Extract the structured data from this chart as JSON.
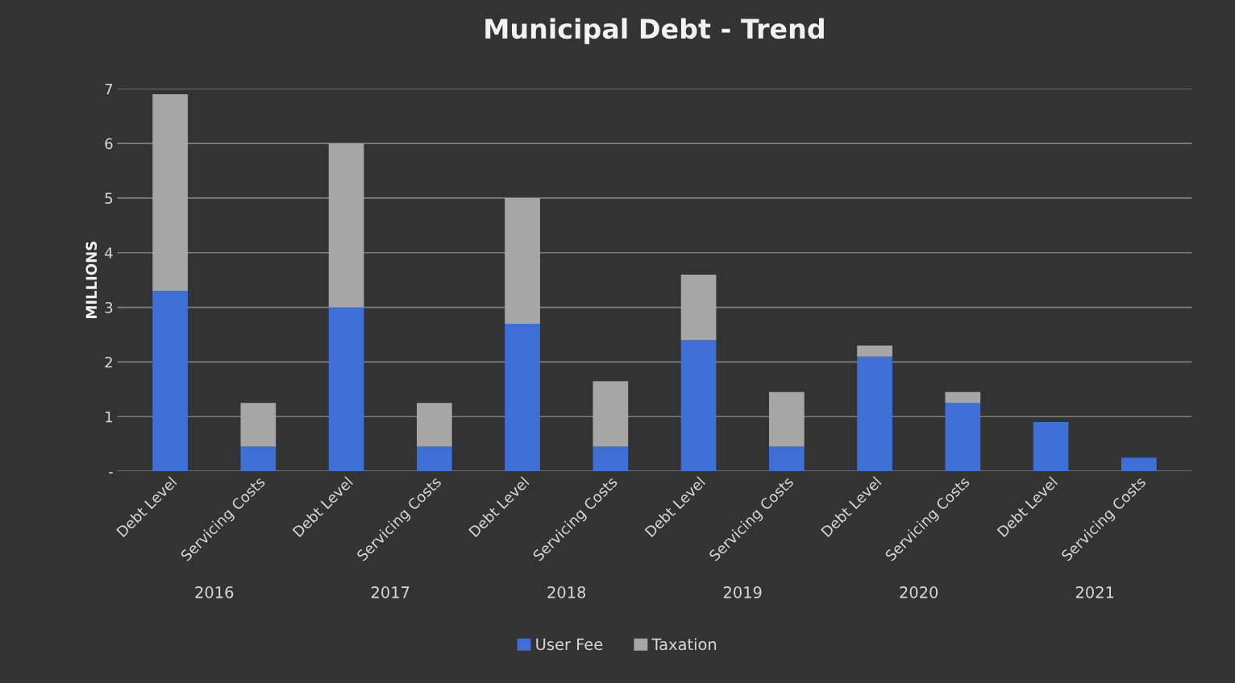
{
  "chart_data": {
    "type": "bar",
    "title": "Municipal Debt - Trend",
    "ylabel": "MILLIONS",
    "categories": [
      "Debt Level",
      "Servicing Costs",
      "Debt Level",
      "Servicing Costs",
      "Debt Level",
      "Servicing Costs",
      "Debt Level",
      "Servicing Costs",
      "Debt Level",
      "Servicing Costs",
      "Debt Level",
      "Servicing Costs"
    ],
    "annotations": [
      "2016",
      "2017",
      "2018",
      "2019",
      "2020",
      "2021"
    ],
    "stacked": true,
    "series": [
      {
        "name": "User Fee",
        "color": "#3e6fd6",
        "values": [
          3.3,
          0.45,
          3.0,
          0.45,
          2.7,
          0.45,
          2.4,
          0.45,
          2.1,
          1.25,
          0.9,
          0.25
        ]
      },
      {
        "name": "Taxation",
        "color": "#a6a6a6",
        "values": [
          3.6,
          0.8,
          3.0,
          0.8,
          2.3,
          1.2,
          1.2,
          1.0,
          0.2,
          0.2,
          0,
          0
        ]
      }
    ],
    "ylim": [
      0,
      7
    ],
    "yticks": [
      {
        "value": 0,
        "label": "-"
      },
      1,
      2,
      3,
      4,
      5,
      6,
      7
    ],
    "grid": "y",
    "legend": "bottom"
  }
}
